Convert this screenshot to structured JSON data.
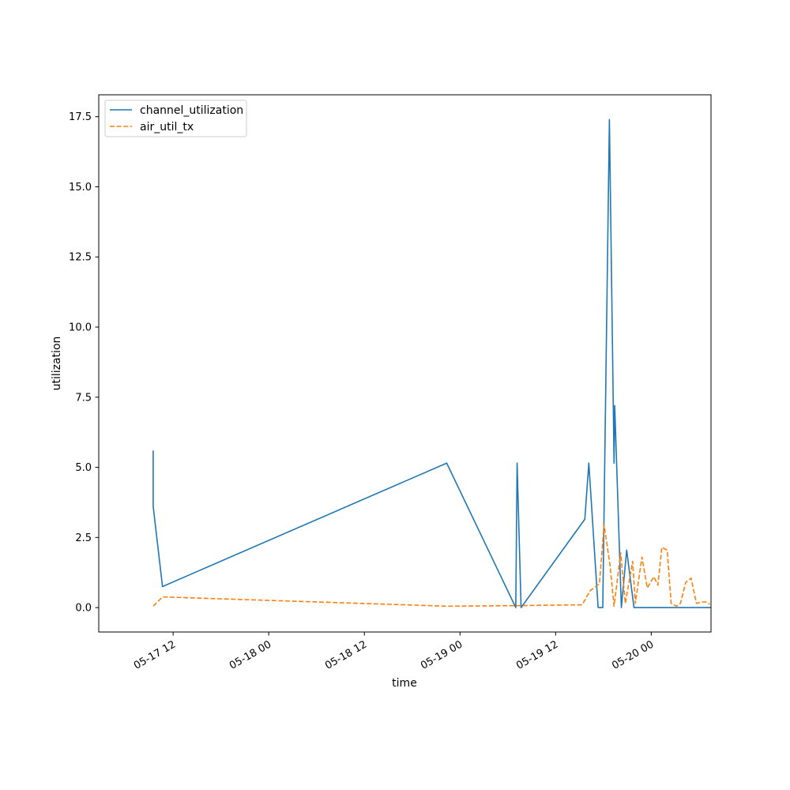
{
  "chart_data": {
    "type": "line",
    "xlabel": "time",
    "ylabel": "utilization",
    "x_axis_type": "datetime",
    "xlim": [
      "2017-05-17 02:40",
      "2017-05-20 07:30"
    ],
    "ylim": [
      -0.87,
      18.28
    ],
    "x_ticks": [
      {
        "t": "2017-05-17 12:00",
        "label": "05-17 12"
      },
      {
        "t": "2017-05-18 00:00",
        "label": "05-18 00"
      },
      {
        "t": "2017-05-18 12:00",
        "label": "05-18 12"
      },
      {
        "t": "2017-05-19 00:00",
        "label": "05-19 00"
      },
      {
        "t": "2017-05-19 12:00",
        "label": "05-19 12"
      },
      {
        "t": "2017-05-20 00:00",
        "label": "05-20 00"
      }
    ],
    "y_ticks": [
      {
        "v": 0.0,
        "label": "0.0"
      },
      {
        "v": 2.5,
        "label": "2.5"
      },
      {
        "v": 5.0,
        "label": "5.0"
      },
      {
        "v": 7.5,
        "label": "7.5"
      },
      {
        "v": 10.0,
        "label": "10.0"
      },
      {
        "v": 12.5,
        "label": "12.5"
      },
      {
        "v": 15.0,
        "label": "15.0"
      },
      {
        "v": 17.5,
        "label": "17.5"
      }
    ],
    "grid": false,
    "legend_position": "top-left",
    "series": [
      {
        "name": "channel_utilization",
        "color": "#1f77b4",
        "style": "solid",
        "points": [
          [
            "2017-05-17 09:30",
            5.6
          ],
          [
            "2017-05-17 09:30",
            3.6
          ],
          [
            "2017-05-17 10:40",
            0.75
          ],
          [
            "2017-05-18 22:20",
            5.15
          ],
          [
            "2017-05-19 07:00",
            0.0
          ],
          [
            "2017-05-19 07:10",
            5.15
          ],
          [
            "2017-05-19 07:40",
            0.0
          ],
          [
            "2017-05-19 15:40",
            3.15
          ],
          [
            "2017-05-19 16:10",
            5.15
          ],
          [
            "2017-05-19 17:20",
            0.0
          ],
          [
            "2017-05-19 17:55",
            0.0
          ],
          [
            "2017-05-19 18:45",
            17.4
          ],
          [
            "2017-05-19 19:20",
            5.15
          ],
          [
            "2017-05-19 19:25",
            7.2
          ],
          [
            "2017-05-19 20:15",
            0.0
          ],
          [
            "2017-05-19 20:55",
            2.05
          ],
          [
            "2017-05-19 21:50",
            0.0
          ],
          [
            "2017-05-20 07:30",
            0.0
          ]
        ]
      },
      {
        "name": "air_util_tx",
        "color": "#ff7f0e",
        "style": "dashed",
        "points": [
          [
            "2017-05-17 09:30",
            0.05
          ],
          [
            "2017-05-17 10:40",
            0.38
          ],
          [
            "2017-05-18 22:20",
            0.05
          ],
          [
            "2017-05-19 07:00",
            0.07
          ],
          [
            "2017-05-19 15:20",
            0.1
          ],
          [
            "2017-05-19 16:20",
            0.6
          ],
          [
            "2017-05-19 17:30",
            0.85
          ],
          [
            "2017-05-19 18:05",
            2.95
          ],
          [
            "2017-05-19 18:50",
            1.5
          ],
          [
            "2017-05-19 19:20",
            0.05
          ],
          [
            "2017-05-19 20:10",
            1.95
          ],
          [
            "2017-05-19 20:45",
            0.15
          ],
          [
            "2017-05-19 21:40",
            1.65
          ],
          [
            "2017-05-19 22:00",
            0.15
          ],
          [
            "2017-05-19 22:50",
            1.8
          ],
          [
            "2017-05-19 23:30",
            0.7
          ],
          [
            "2017-05-20 00:20",
            1.1
          ],
          [
            "2017-05-20 00:50",
            0.8
          ],
          [
            "2017-05-20 01:20",
            2.15
          ],
          [
            "2017-05-20 02:00",
            2.05
          ],
          [
            "2017-05-20 02:30",
            0.15
          ],
          [
            "2017-05-20 03:10",
            0.05
          ],
          [
            "2017-05-20 03:40",
            0.15
          ],
          [
            "2017-05-20 04:20",
            0.9
          ],
          [
            "2017-05-20 05:00",
            1.05
          ],
          [
            "2017-05-20 05:40",
            0.15
          ],
          [
            "2017-05-20 06:20",
            0.2
          ],
          [
            "2017-05-20 06:50",
            0.2
          ],
          [
            "2017-05-20 07:20",
            0.12
          ]
        ]
      }
    ]
  }
}
